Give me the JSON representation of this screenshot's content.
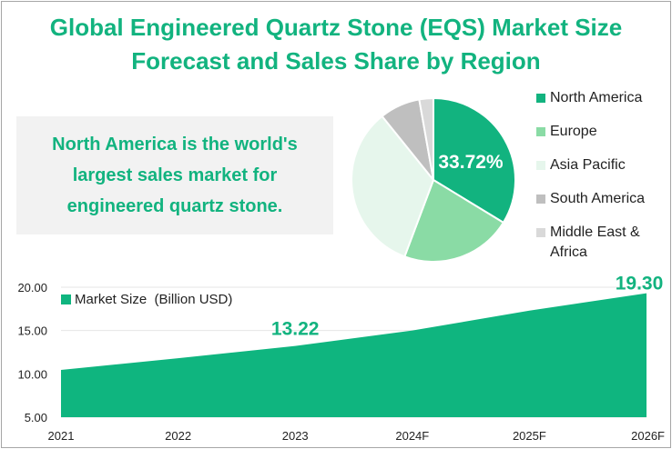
{
  "title_line1": "Global Engineered Quartz Stone (EQS) Market Size",
  "title_line2": "Forecast and Sales Share by Region",
  "callout": "North America is the world's largest sales market for engineered quartz stone.",
  "chart_data": [
    {
      "type": "pie",
      "title": "Sales Share by Region",
      "labels": [
        "North America",
        "Europe",
        "Asia Pacific",
        "South America",
        "Middle East & Africa"
      ],
      "values": [
        33.72,
        22.0,
        33.5,
        8.0,
        2.78
      ],
      "colors": [
        "#12b37f",
        "#8adba5",
        "#e6f6ec",
        "#bfbfbf",
        "#d9d9d9"
      ],
      "data_labels": [
        "33.72%"
      ],
      "legend": "right"
    },
    {
      "type": "area",
      "series": [
        {
          "name": "Market Size  (Billion USD)",
          "values": [
            10.46,
            11.8,
            13.22,
            15.0,
            17.3,
            19.3
          ]
        }
      ],
      "categories": [
        "2021",
        "2022",
        "2023",
        "2024F",
        "2025F",
        "2026F"
      ],
      "data_labels": [
        {
          "index": 2,
          "text": "13.22"
        },
        {
          "index": 5,
          "text": "19.30"
        }
      ],
      "ylim": [
        5,
        20
      ],
      "yticks": [
        "5.00",
        "10.00",
        "15.00",
        "20.00"
      ],
      "grid": true,
      "color": "#0fb57f",
      "legend": "top-left"
    }
  ]
}
